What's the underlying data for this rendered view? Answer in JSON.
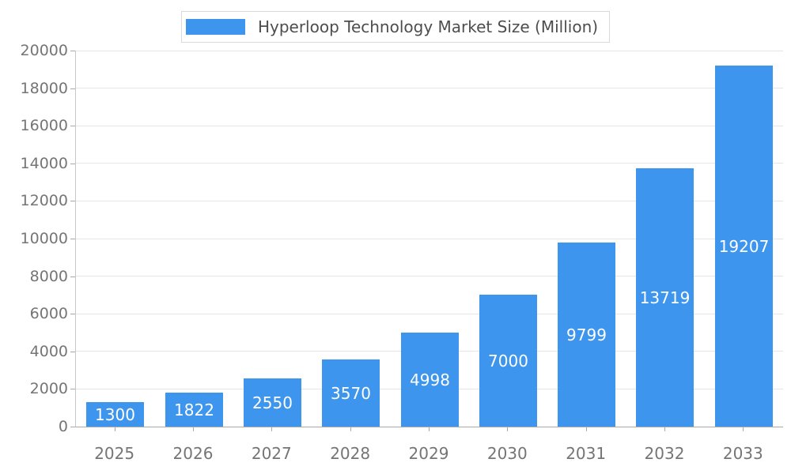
{
  "chart_data": {
    "type": "bar",
    "title": "Hyperloop Technology Market Size (Million)",
    "categories": [
      "2025",
      "2026",
      "2027",
      "2028",
      "2029",
      "2030",
      "2031",
      "2032",
      "2033"
    ],
    "values": [
      1300,
      1822,
      2550,
      3570,
      4998,
      7000,
      9799,
      13719,
      19207
    ],
    "xlabel": "",
    "ylabel": "",
    "ylim": [
      0,
      20000
    ],
    "ytick_step": 2000,
    "ytick_labels": [
      "0",
      "2000",
      "4000",
      "6000",
      "8000",
      "10000",
      "12000",
      "14000",
      "16000",
      "18000",
      "20000"
    ],
    "grid": true,
    "legend_position": "top-center",
    "series_color": "#3E95ED",
    "value_label_color": "#ffffff",
    "axis_label_color": "#757575"
  },
  "legend": {
    "label": "Hyperloop Technology Market Size (Million)"
  }
}
